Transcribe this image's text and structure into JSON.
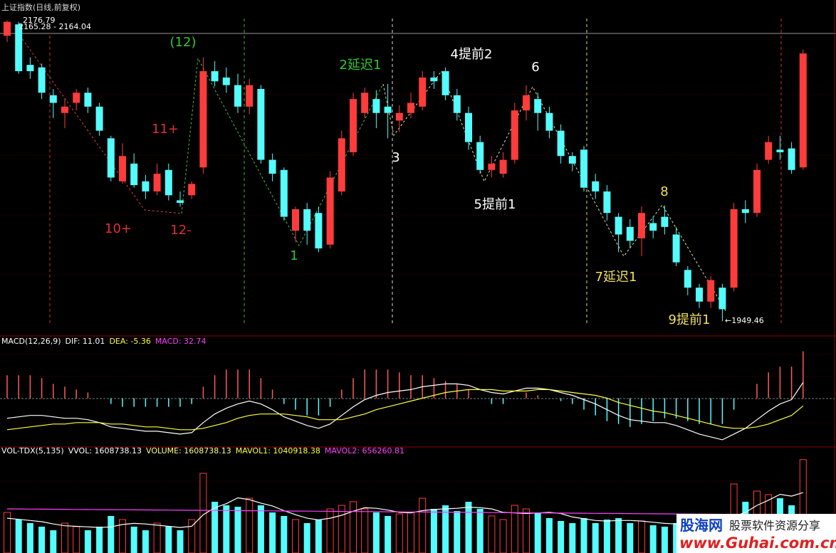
{
  "chart_data": [
    {
      "type": "candlestick",
      "title": "上证指数(日线,前复权)",
      "high_label": "2176.79",
      "price_label": "2165.28 - 2164.04",
      "low_label": "←1949.46",
      "annotations": [
        "(12)",
        "11+",
        "10+",
        "12-",
        "1",
        "2延迟1",
        "3",
        "4提前2",
        "5提前1",
        "6",
        "7延迟1",
        "8",
        "9提前1"
      ],
      "open": [
        2175,
        2184,
        2152,
        2150,
        2128,
        2114,
        2122,
        2130,
        2119,
        2094,
        2060,
        2074,
        2060,
        2052,
        2069,
        2045,
        2049,
        2071,
        2147,
        2142,
        2136,
        2119,
        2133,
        2077,
        2069,
        2021,
        2038,
        2035,
        2010,
        2052,
        2083,
        2114,
        2125,
        2119,
        2108,
        2114,
        2119,
        2142,
        2147,
        2128,
        2114,
        2091,
        2069,
        2066,
        2077,
        2116,
        2125,
        2114,
        2100,
        2080,
        2085,
        2060,
        2052,
        2032,
        2024,
        2015,
        2027,
        2032,
        2018,
        1990,
        1976,
        1965,
        1976,
        1976,
        2038,
        2035,
        2077,
        2085,
        2086,
        2071
      ],
      "high": [
        2187,
        2186,
        2158,
        2153,
        2133,
        2125,
        2133,
        2134,
        2122,
        2096,
        2090,
        2082,
        2065,
        2074,
        2074,
        2052,
        2060,
        2158,
        2155,
        2150,
        2145,
        2141,
        2136,
        2082,
        2071,
        2040,
        2043,
        2040,
        2068,
        2100,
        2130,
        2134,
        2132,
        2137,
        2120,
        2130,
        2147,
        2147,
        2150,
        2133,
        2119,
        2096,
        2080,
        2083,
        2122,
        2136,
        2130,
        2119,
        2105,
        2083,
        2088,
        2066,
        2057,
        2035,
        2030,
        2040,
        2032,
        2041,
        2024,
        1993,
        1979,
        1985,
        1979,
        2043,
        2045,
        2074,
        2096,
        2096,
        2091,
        2164
      ],
      "low": [
        2170,
        2145,
        2141,
        2125,
        2110,
        2102,
        2116,
        2114,
        2096,
        2060,
        2058,
        2055,
        2046,
        2049,
        2045,
        2040,
        2046,
        2066,
        2135,
        2130,
        2114,
        2113,
        2074,
        2060,
        2029,
        2012,
        2010,
        2004,
        2007,
        2049,
        2080,
        2110,
        2102,
        2094,
        2099,
        2110,
        2116,
        2133,
        2124,
        2108,
        2085,
        2066,
        2063,
        2063,
        2074,
        2108,
        2100,
        2094,
        2074,
        2068,
        2052,
        2046,
        2029,
        2004,
        2007,
        2001,
        2015,
        2018,
        1993,
        1970,
        1960,
        1960,
        1949.46,
        1973,
        2027,
        2032,
        2074,
        2077,
        2066,
        2069
      ],
      "close": [
        2186,
        2147,
        2147,
        2130,
        2122,
        2119,
        2130,
        2119,
        2100,
        2063,
        2080,
        2057,
        2052,
        2066,
        2049,
        2043,
        2058,
        2147,
        2139,
        2136,
        2119,
        2136,
        2077,
        2066,
        2032,
        2038,
        2021,
        2007,
        2063,
        2094,
        2125,
        2130,
        2114,
        2114,
        2114,
        2122,
        2142,
        2139,
        2128,
        2114,
        2091,
        2069,
        2074,
        2077,
        2116,
        2128,
        2114,
        2100,
        2080,
        2074,
        2055,
        2052,
        2035,
        2018,
        2013,
        2035,
        2021,
        2024,
        1996,
        1976,
        1965,
        1982,
        1959,
        2038,
        2035,
        2069,
        2091,
        2083,
        2069,
        2161
      ],
      "ylim": [
        1939,
        2192
      ],
      "up_color": "#ff3c3c",
      "down_color": "#54fcfc"
    },
    {
      "type": "macd",
      "header": [
        "MACD(12,26,9)",
        "DIF: 11.01",
        "DEA: -5.36",
        "MACD: 32.74"
      ],
      "histogram": {
        "up_color": "#ff5a5a",
        "down_color": "#54fcfc",
        "values": [
          16,
          16,
          16,
          14,
          10,
          8,
          6,
          4,
          0,
          -4,
          -6,
          -6,
          -6,
          -6,
          -6,
          -6,
          -4,
          8,
          16,
          20,
          20,
          20,
          14,
          6,
          -4,
          -8,
          -12,
          -12,
          -6,
          6,
          14,
          20,
          20,
          20,
          18,
          16,
          16,
          14,
          12,
          10,
          6,
          0,
          -4,
          -4,
          0,
          4,
          2,
          0,
          -2,
          -4,
          -8,
          -12,
          -16,
          -18,
          -20,
          -18,
          -16,
          -14,
          -14,
          -16,
          -18,
          -18,
          -18,
          -8,
          0,
          10,
          18,
          22,
          22,
          32.74
        ]
      },
      "dif": {
        "color": "#ffffff",
        "values": [
          -14,
          -13,
          -12,
          -12,
          -13,
          -14,
          -14,
          -15,
          -17,
          -20,
          -21,
          -22,
          -23,
          -23,
          -24,
          -25,
          -24,
          -17,
          -11,
          -7,
          -4,
          -2,
          -4,
          -8,
          -13,
          -16,
          -19,
          -21,
          -18,
          -12,
          -6,
          -1,
          2,
          4,
          5,
          6,
          8,
          9,
          10,
          10,
          9,
          6,
          4,
          3,
          5,
          7,
          7,
          6,
          4,
          2,
          -1,
          -4,
          -8,
          -12,
          -15,
          -16,
          -17,
          -17,
          -19,
          -22,
          -25,
          -27,
          -29,
          -25,
          -21,
          -15,
          -9,
          -4,
          -1,
          11.01
        ]
      },
      "dea": {
        "color": "#ffff3c",
        "values": [
          -22,
          -21,
          -20,
          -19,
          -18,
          -18,
          -17,
          -17,
          -17,
          -18,
          -18,
          -19,
          -20,
          -20,
          -21,
          -22,
          -22,
          -21,
          -19,
          -17,
          -14,
          -12,
          -11,
          -11,
          -11,
          -12,
          -13,
          -15,
          -15,
          -15,
          -13,
          -11,
          -8,
          -6,
          -4,
          -2,
          0,
          2,
          4,
          5,
          6,
          6,
          6,
          5,
          5,
          5,
          6,
          6,
          5,
          4,
          3,
          2,
          0,
          -3,
          -5,
          -7,
          -9,
          -10,
          -12,
          -14,
          -16,
          -18,
          -20,
          -21,
          -21,
          -20,
          -18,
          -15,
          -12,
          -5.36
        ]
      },
      "ylim": [
        -33,
        34.5
      ]
    },
    {
      "type": "volume",
      "header": [
        "VOL-TDX(5,135)",
        "VVOL: 1608738.13",
        "VOLUME: 1608738.13",
        "MAVOL1: 1040918.38",
        "MAVOL2: 656260.81"
      ],
      "values": [
        699000,
        576000,
        515000,
        454000,
        392000,
        515000,
        454000,
        392000,
        454000,
        638000,
        576000,
        454000,
        392000,
        515000,
        454000,
        392000,
        576000,
        1373000,
        883000,
        822000,
        797000,
        944000,
        822000,
        699000,
        638000,
        576000,
        515000,
        576000,
        760000,
        822000,
        883000,
        760000,
        699000,
        638000,
        674000,
        699000,
        944000,
        760000,
        822000,
        723000,
        883000,
        760000,
        638000,
        576000,
        822000,
        760000,
        699000,
        601000,
        552000,
        515000,
        601000,
        515000,
        576000,
        601000,
        515000,
        552000,
        478000,
        454000,
        515000,
        515000,
        478000,
        454000,
        515000,
        1190000,
        883000,
        1067000,
        1006000,
        944000,
        822000,
        1608738.13
      ],
      "up_color": "#ff3c3c",
      "down_color": "#54fcfc",
      "mavol1": {
        "color": "#ffffff",
        "values": [
          600000,
          580000,
          560000,
          540000,
          500000,
          470000,
          460000,
          450000,
          440000,
          450000,
          490000,
          510000,
          500000,
          480000,
          460000,
          440000,
          460000,
          660000,
          780000,
          850000,
          950000,
          920000,
          860000,
          810000,
          730000,
          660000,
          600000,
          570000,
          600000,
          650000,
          720000,
          780000,
          770000,
          740000,
          700000,
          690000,
          730000,
          750000,
          760000,
          770000,
          790000,
          780000,
          760000,
          700000,
          690000,
          680000,
          690000,
          700000,
          680000,
          620000,
          590000,
          560000,
          550000,
          560000,
          560000,
          550000,
          530000,
          510000,
          500000,
          490000,
          490000,
          490000,
          490000,
          630000,
          700000,
          820000,
          910000,
          1010000,
          980000,
          1040918.38
        ]
      },
      "mavol2": {
        "color": "#ff40ff",
        "values": [
          760000,
          758500,
          757000,
          755500,
          754000,
          752500,
          751000,
          749500,
          748000,
          746500,
          745000,
          743500,
          742000,
          740500,
          739000,
          737500,
          736000,
          734500,
          733000,
          731500,
          730000,
          728500,
          727000,
          725500,
          724000,
          722500,
          721000,
          719500,
          718000,
          716500,
          715000,
          713500,
          712000,
          710500,
          709000,
          707500,
          706000,
          704500,
          703000,
          701500,
          700000,
          698500,
          697000,
          695500,
          694000,
          692500,
          691000,
          689500,
          688000,
          686500,
          685000,
          683500,
          682000,
          680500,
          679000,
          677500,
          676000,
          674500,
          673000,
          671500,
          670000,
          668500,
          667000,
          665500,
          664000,
          662500,
          661000,
          659500,
          658000,
          656260.81
        ]
      },
      "ylim": [
        0,
        1680000
      ]
    }
  ],
  "watermark": {
    "logo": "股海网",
    "slogan": "股票软件资源分享",
    "url": "www.Guhai.com.cn"
  }
}
